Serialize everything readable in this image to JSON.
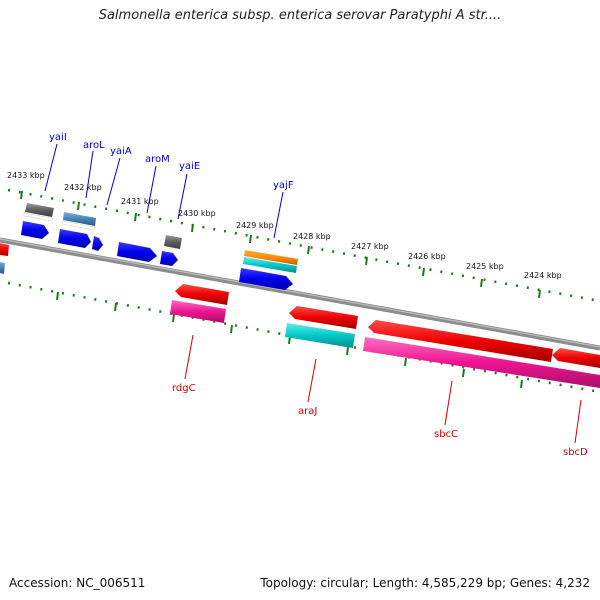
{
  "title": "Salmonella enterica subsp. enterica serovar Paratyphi A str....",
  "accession": "Accession: NC_006511",
  "summary": "Topology: circular; Length: 4,585,229 bp; Genes: 4,232",
  "scale_labels": [
    "2433 kbp",
    "2432 kbp",
    "2431 kbp",
    "2430 kbp",
    "2429 kbp",
    "2428 kbp",
    "2427 kbp",
    "2426 kbp",
    "2425 kbp",
    "2424 kbp"
  ],
  "forward_genes": [
    "yaiI",
    "aroL",
    "yaiA",
    "aroM",
    "yaiE",
    "yajF"
  ],
  "reverse_genes": [
    "rdgC",
    "araJ",
    "sbcC",
    "sbcD"
  ],
  "colors": {
    "forward_label": "#0000cc",
    "reverse_label": "#cc0000",
    "backbone": "#8c8c8c",
    "tick": "#1a7a1a",
    "cds_blue": "#0000ee",
    "cds_red": "#ee0000",
    "cds_pink": "#ee1493",
    "cds_cyan": "#00c8c8",
    "cds_orange": "#ff8800",
    "cds_steel": "#4682b4",
    "cds_gray": "#606060"
  }
}
